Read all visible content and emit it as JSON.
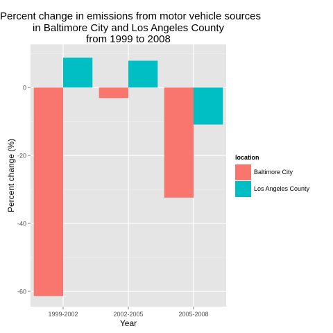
{
  "chart_data": {
    "type": "bar",
    "title_lines": [
      "Percent change in emissions from motor vehicle sources",
      "in Baltimore City and Los Angeles County",
      "from 1999 to 2008"
    ],
    "xlabel": "Year",
    "ylabel": "Percent change (%)",
    "categories": [
      "1999-2002",
      "2002-2005",
      "2005-2008"
    ],
    "series": [
      {
        "name": "Baltimore City",
        "color": "#F8766D",
        "values": [
          -61.4,
          -3.1,
          -32.4
        ]
      },
      {
        "name": "Los Angeles County",
        "color": "#00BFC4",
        "values": [
          8.8,
          7.9,
          -10.9
        ]
      }
    ],
    "yticks": [
      0,
      -20,
      -40,
      -60
    ],
    "ylim": [
      -64.5,
      12.7
    ],
    "grid": true,
    "legend": {
      "title": "location",
      "position": "right"
    }
  }
}
